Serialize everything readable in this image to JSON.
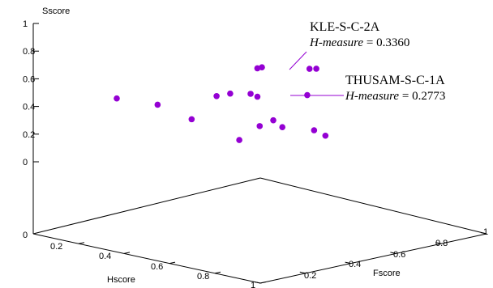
{
  "chart_data": {
    "type": "scatter3d",
    "title": "",
    "axes": {
      "x": {
        "label": "Hscore",
        "range": [
          0,
          1
        ],
        "ticks": [
          "0.2",
          "0.4",
          "0.6",
          "0.8",
          "1"
        ]
      },
      "y": {
        "label": "Fscore",
        "range": [
          0,
          1
        ],
        "ticks": [
          "0",
          "0.2",
          "0.4",
          "0.6",
          "0.8",
          "1"
        ]
      },
      "z": {
        "label": "Sscore",
        "range": [
          0,
          1
        ],
        "ticks": [
          "0",
          "0.2",
          "0.4",
          "0.6",
          "0.8",
          "1"
        ]
      }
    },
    "floor_tick": "0",
    "point_color": "#9400d3",
    "points": [
      {
        "h": 0.24,
        "f": 0.2,
        "s": 0.46
      },
      {
        "h": 0.38,
        "f": 0.24,
        "s": 0.42
      },
      {
        "h": 0.5,
        "f": 0.27,
        "s": 0.32
      },
      {
        "h": 0.58,
        "f": 0.3,
        "s": 0.49
      },
      {
        "h": 0.63,
        "f": 0.31,
        "s": 0.51
      },
      {
        "h": 0.66,
        "f": 0.4,
        "s": 0.69
      },
      {
        "h": 0.7,
        "f": 0.38,
        "s": 0.7
      },
      {
        "h": 0.69,
        "f": 0.34,
        "s": 0.51
      },
      {
        "h": 0.71,
        "f": 0.35,
        "s": 0.49
      },
      {
        "h": 0.7,
        "f": 0.28,
        "s": 0.18
      },
      {
        "h": 0.74,
        "f": 0.33,
        "s": 0.28
      },
      {
        "h": 0.75,
        "f": 0.38,
        "s": 0.32
      },
      {
        "h": 0.77,
        "f": 0.4,
        "s": 0.27
      },
      {
        "h": 0.81,
        "f": 0.48,
        "s": 0.69
      },
      {
        "h": 0.82,
        "f": 0.5,
        "s": 0.69
      },
      {
        "h": 0.81,
        "f": 0.47,
        "s": 0.5
      },
      {
        "h": 0.86,
        "f": 0.45,
        "s": 0.25
      },
      {
        "h": 0.88,
        "f": 0.48,
        "s": 0.21
      }
    ],
    "annotations": [
      {
        "name": "KLE-S-C-2A",
        "measure_label": "H-measure",
        "equals": " = ",
        "value": "0.3360",
        "target_point": 14
      },
      {
        "name": "THUSAM-S-C-1A",
        "measure_label": "H-measure",
        "equals": " = ",
        "value": "0.2773",
        "target_point": 15
      }
    ]
  }
}
